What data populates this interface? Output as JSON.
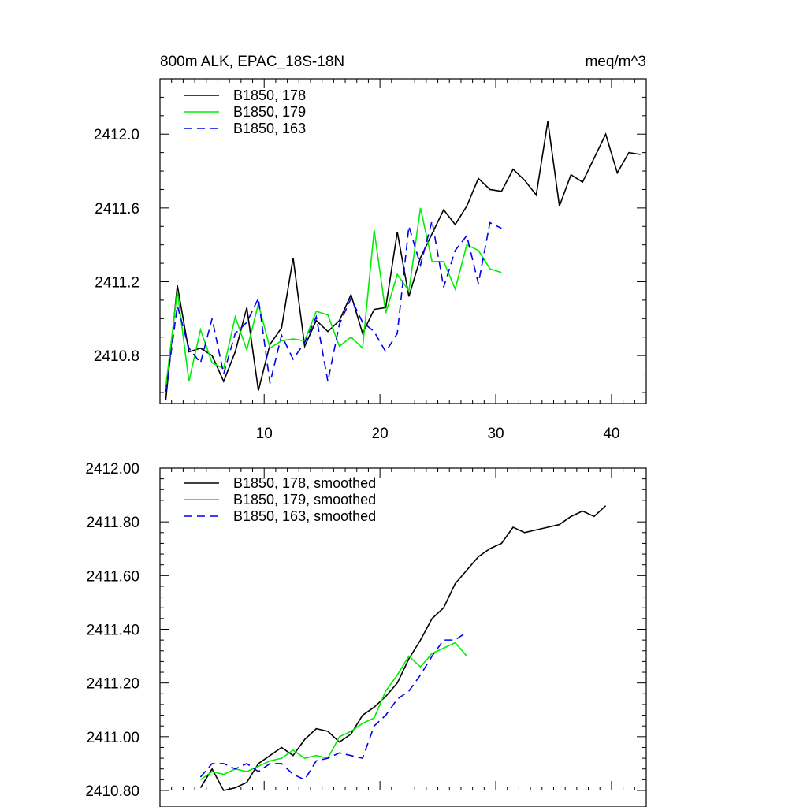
{
  "chart_data": [
    {
      "type": "line",
      "title": "800m ALK, EPAC_18S-18N",
      "units": "meq/m^3",
      "xlabel": "",
      "ylabel": "",
      "xlim": [
        1,
        43
      ],
      "ylim": [
        2410.54,
        2412.3
      ],
      "x_ticks": [
        10,
        20,
        30,
        40
      ],
      "x_tick_labels": [
        "10",
        "20",
        "30",
        "40"
      ],
      "y_ticks": [
        2410.8,
        2411.2,
        2411.6,
        2412.0
      ],
      "y_tick_labels": [
        "2410.8",
        "2411.2",
        "2411.6",
        "2412.0"
      ],
      "legend_position": "top-left",
      "series": [
        {
          "name": "B1850, 178",
          "color": "#000000",
          "dash": "solid",
          "x": [
            1.5,
            2.5,
            3.5,
            4.5,
            5.5,
            6.5,
            7.5,
            8.5,
            9.5,
            10.5,
            11.5,
            12.5,
            13.5,
            14.5,
            15.5,
            16.5,
            17.5,
            18.5,
            19.5,
            20.5,
            21.5,
            22.5,
            23.5,
            24.5,
            25.5,
            26.5,
            27.5,
            28.5,
            29.5,
            30.5,
            31.5,
            32.5,
            33.5,
            34.5,
            35.5,
            36.5,
            37.5,
            38.5,
            39.5,
            40.5,
            41.5,
            42.5
          ],
          "values": [
            2410.56,
            2411.18,
            2410.82,
            2410.84,
            2410.8,
            2410.66,
            2410.82,
            2411.06,
            2410.61,
            2410.86,
            2410.95,
            2411.33,
            2410.85,
            2410.99,
            2410.93,
            2410.99,
            2411.13,
            2410.92,
            2411.05,
            2411.06,
            2411.47,
            2411.12,
            2411.33,
            2411.46,
            2411.59,
            2411.51,
            2411.61,
            2411.76,
            2411.7,
            2411.69,
            2411.81,
            2411.75,
            2411.67,
            2412.07,
            2411.61,
            2411.78,
            2411.74,
            2411.87,
            2412.0,
            2411.79,
            2411.9,
            2411.89
          ]
        },
        {
          "name": "B1850, 179",
          "color": "#00ee00",
          "dash": "solid",
          "x": [
            1.5,
            2.5,
            3.5,
            4.5,
            5.5,
            6.5,
            7.5,
            8.5,
            9.5,
            10.5,
            11.5,
            12.5,
            13.5,
            14.5,
            15.5,
            16.5,
            17.5,
            18.5,
            19.5,
            20.5,
            21.5,
            22.5,
            23.5,
            24.5,
            25.5,
            26.5,
            27.5,
            28.5,
            29.5,
            30.5
          ],
          "values": [
            2410.63,
            2411.15,
            2410.66,
            2410.94,
            2410.76,
            2410.73,
            2411.01,
            2410.83,
            2411.08,
            2410.84,
            2410.88,
            2410.89,
            2410.88,
            2411.04,
            2411.02,
            2410.85,
            2410.9,
            2410.84,
            2411.48,
            2411.03,
            2411.24,
            2411.15,
            2411.6,
            2411.31,
            2411.31,
            2411.16,
            2411.4,
            2411.37,
            2411.27,
            2411.25
          ]
        },
        {
          "name": "B1850, 163",
          "color": "#0000ee",
          "dash": "dashed",
          "x": [
            1.5,
            2.5,
            3.5,
            4.5,
            5.5,
            6.5,
            7.5,
            8.5,
            9.5,
            10.5,
            11.5,
            12.5,
            13.5,
            14.5,
            15.5,
            16.5,
            17.5,
            18.5,
            19.5,
            20.5,
            21.5,
            22.5,
            23.5,
            24.5,
            25.5,
            26.5,
            27.5,
            28.5,
            29.5,
            30.5
          ],
          "values": [
            2410.6,
            2411.07,
            2410.84,
            2410.76,
            2411.0,
            2410.7,
            2410.92,
            2410.98,
            2411.11,
            2410.65,
            2410.91,
            2410.78,
            2410.87,
            2411.01,
            2410.66,
            2410.97,
            2411.11,
            2410.98,
            2410.93,
            2410.82,
            2410.92,
            2411.5,
            2411.29,
            2411.53,
            2411.17,
            2411.37,
            2411.45,
            2411.19,
            2411.52,
            2411.49
          ]
        }
      ]
    },
    {
      "type": "line",
      "title": "",
      "xlabel": "",
      "ylabel": "",
      "xlim": [
        1,
        43
      ],
      "ylim": [
        2410.8,
        2412.0
      ],
      "x_ticks": [
        10,
        20,
        30,
        40
      ],
      "y_ticks": [
        2410.8,
        2411.0,
        2411.2,
        2411.4,
        2411.6,
        2411.8,
        2412.0
      ],
      "y_tick_labels": [
        "2410.80",
        "2411.00",
        "2411.20",
        "2411.40",
        "2411.60",
        "2411.80",
        "2412.00"
      ],
      "legend_position": "top-left",
      "series": [
        {
          "name": "B1850, 178, smoothed",
          "color": "#000000",
          "dash": "solid",
          "x": [
            4.5,
            5.5,
            6.5,
            7.5,
            8.5,
            9.5,
            10.5,
            11.5,
            12.5,
            13.5,
            14.5,
            15.5,
            16.5,
            17.5,
            18.5,
            19.5,
            20.5,
            21.5,
            22.5,
            23.5,
            24.5,
            25.5,
            26.5,
            27.5,
            28.5,
            29.5,
            30.5,
            31.5,
            32.5,
            33.5,
            34.5,
            35.5,
            36.5,
            37.5,
            38.5,
            39.5
          ],
          "values": [
            2410.81,
            2410.88,
            2410.8,
            2410.81,
            2410.83,
            2410.9,
            2410.93,
            2410.96,
            2410.93,
            2410.99,
            2411.03,
            2411.02,
            2410.98,
            2411.01,
            2411.08,
            2411.11,
            2411.15,
            2411.2,
            2411.29,
            2411.36,
            2411.44,
            2411.48,
            2411.57,
            2411.62,
            2411.67,
            2411.7,
            2411.72,
            2411.78,
            2411.76,
            2411.77,
            2411.78,
            2411.79,
            2411.82,
            2411.84,
            2411.82,
            2411.86
          ]
        },
        {
          "name": "B1850, 179, smoothed",
          "color": "#00ee00",
          "dash": "solid",
          "x": [
            4.5,
            5.5,
            6.5,
            7.5,
            8.5,
            9.5,
            10.5,
            11.5,
            12.5,
            13.5,
            14.5,
            15.5,
            16.5,
            17.5,
            18.5,
            19.5,
            20.5,
            21.5,
            22.5,
            23.5,
            24.5,
            25.5,
            26.5,
            27.5
          ],
          "values": [
            2410.84,
            2410.87,
            2410.86,
            2410.88,
            2410.87,
            2410.89,
            2410.91,
            2410.92,
            2410.95,
            2410.92,
            2410.93,
            2410.92,
            2411.0,
            2411.02,
            2411.05,
            2411.07,
            2411.17,
            2411.23,
            2411.3,
            2411.26,
            2411.31,
            2411.33,
            2411.35,
            2411.3
          ]
        },
        {
          "name": "B1850, 163, smoothed",
          "color": "#0000ee",
          "dash": "dashed",
          "x": [
            4.5,
            5.5,
            6.5,
            7.5,
            8.5,
            9.5,
            10.5,
            11.5,
            12.5,
            13.5,
            14.5,
            15.5,
            16.5,
            17.5,
            18.5,
            19.5,
            20.5,
            21.5,
            22.5,
            23.5,
            24.5,
            25.5,
            26.5,
            27.5
          ],
          "values": [
            2410.85,
            2410.9,
            2410.9,
            2410.88,
            2410.9,
            2410.87,
            2410.9,
            2410.9,
            2410.86,
            2410.84,
            2410.91,
            2410.92,
            2410.94,
            2410.93,
            2410.92,
            2411.04,
            2411.08,
            2411.14,
            2411.17,
            2411.23,
            2411.3,
            2411.36,
            2411.36,
            2411.39
          ]
        }
      ]
    }
  ]
}
